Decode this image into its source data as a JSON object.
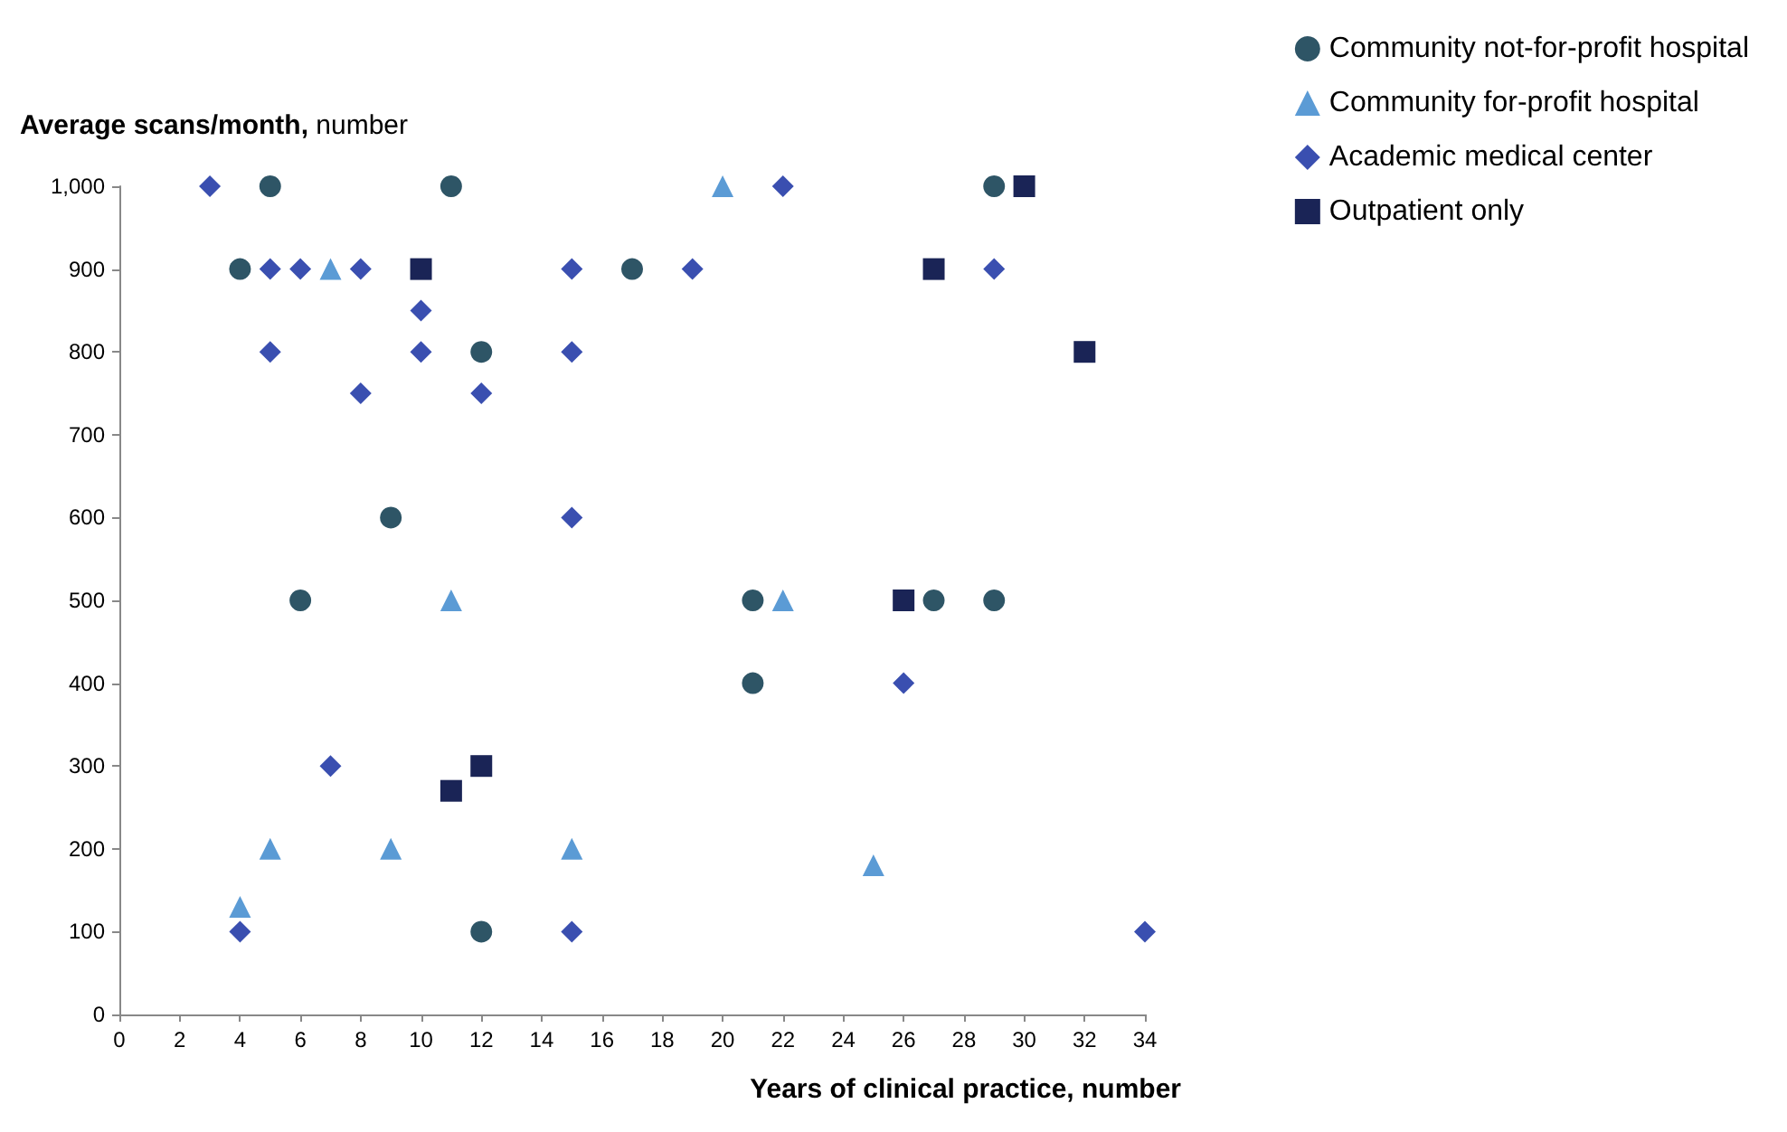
{
  "chart_data": {
    "type": "scatter",
    "xlabel": "Years of clinical practice, number",
    "ylabel": "Average scans/month, number",
    "xlim": [
      0,
      34
    ],
    "xticks": [
      0,
      2,
      4,
      6,
      8,
      10,
      12,
      14,
      16,
      18,
      20,
      22,
      24,
      26,
      28,
      30,
      32,
      34
    ],
    "ylim": [
      0,
      1000
    ],
    "yticks": [
      0,
      100,
      200,
      300,
      400,
      500,
      600,
      700,
      800,
      900,
      {
        "value": 1000,
        "label": "1,000"
      }
    ],
    "grid": false,
    "legend": "top right",
    "series": [
      {
        "name": "Community not-for-profit hospital",
        "color": "#2e5566",
        "marker": "circle",
        "x": [
          4,
          5,
          11,
          12,
          9,
          6,
          17,
          21,
          21,
          27,
          29,
          29,
          12
        ],
        "values": [
          900,
          1000,
          1000,
          800,
          600,
          500,
          900,
          500,
          400,
          500,
          500,
          1000,
          100
        ]
      },
      {
        "name": "Community for-profit hospital",
        "color": "#5b9bd5",
        "marker": "triangle",
        "x": [
          7,
          20,
          11,
          22,
          5,
          9,
          15,
          25,
          4
        ],
        "values": [
          900,
          1000,
          500,
          500,
          200,
          200,
          200,
          180,
          130
        ]
      },
      {
        "name": "Academic medical center",
        "color": "#3a4fb0",
        "marker": "diamond",
        "x": [
          3,
          5,
          6,
          8,
          5,
          10,
          10,
          8,
          12,
          15,
          15,
          15,
          19,
          22,
          29,
          26,
          7,
          4,
          15,
          34
        ],
        "values": [
          1000,
          900,
          900,
          900,
          800,
          850,
          800,
          750,
          750,
          900,
          800,
          600,
          900,
          1000,
          900,
          400,
          300,
          100,
          100,
          100
        ]
      },
      {
        "name": "Outpatient only",
        "color": "#1a2456",
        "marker": "square",
        "x": [
          10,
          30,
          27,
          32,
          26,
          11,
          12
        ],
        "values": [
          900,
          1000,
          900,
          800,
          500,
          270,
          300
        ]
      }
    ]
  }
}
